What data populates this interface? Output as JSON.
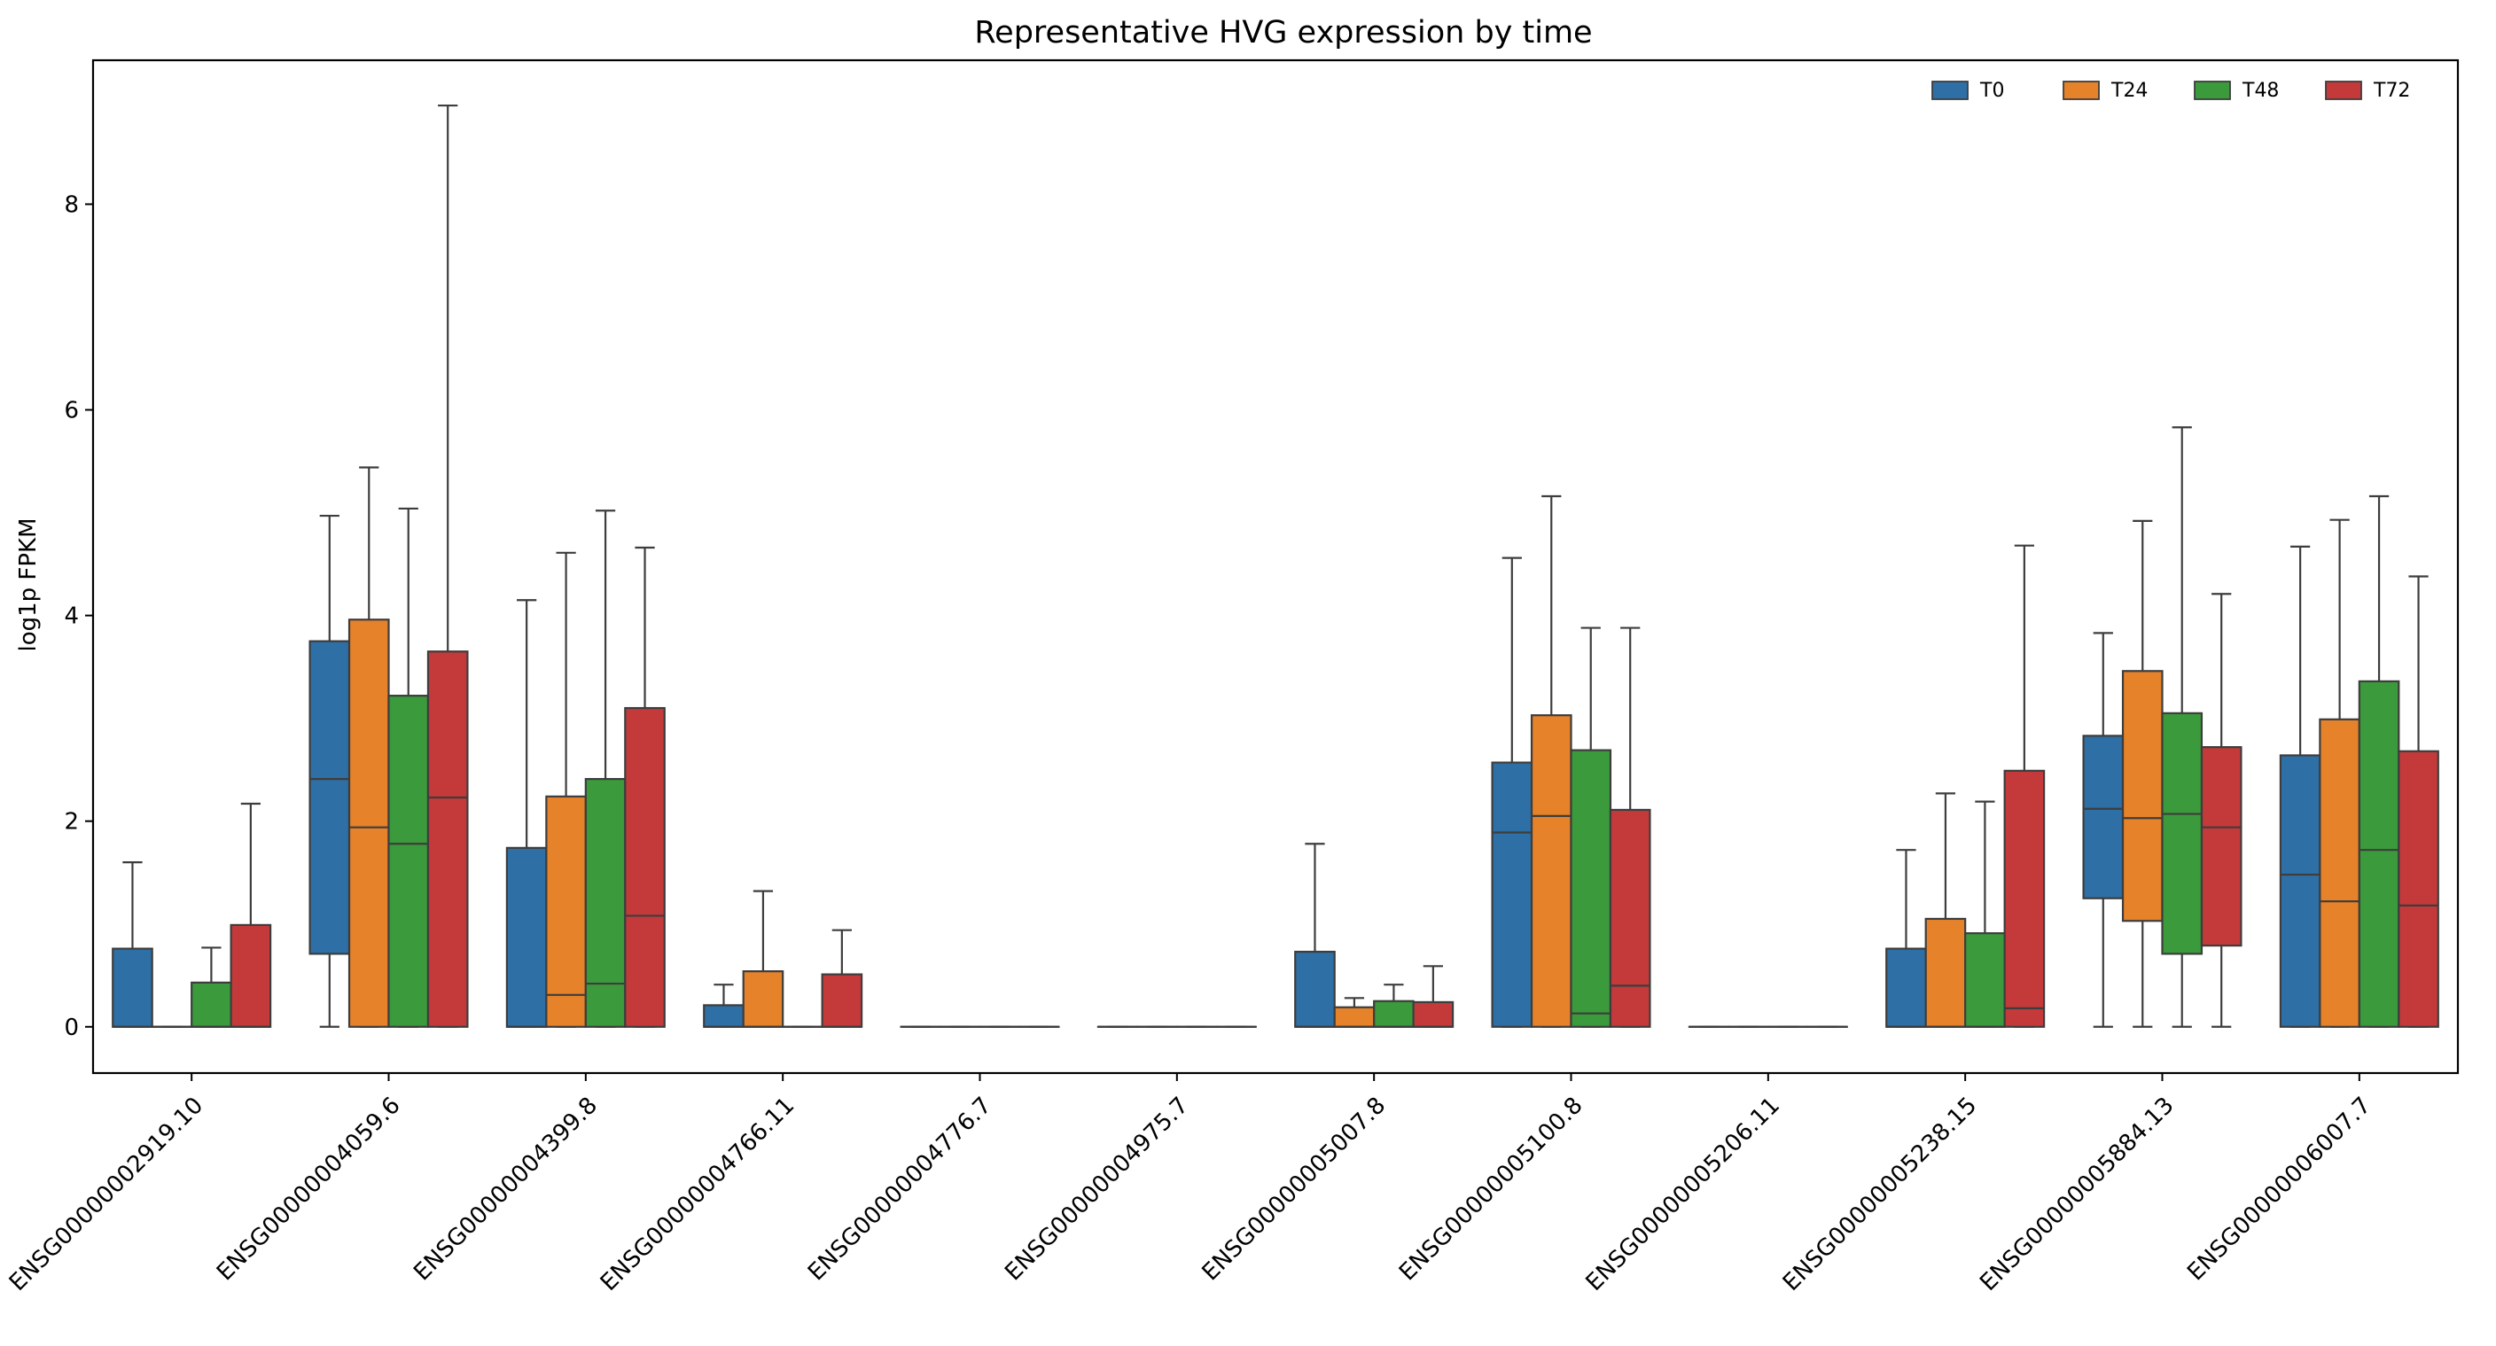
{
  "chart_data": {
    "type": "box",
    "title": "Representative HVG expression by time",
    "xlabel": "",
    "ylabel": "log1p FPKM",
    "ylim": [
      -0.45,
      9.4
    ],
    "yticks": [
      0,
      2,
      4,
      6,
      8
    ],
    "grid": false,
    "legend_position": "top-right",
    "categories": [
      "ENSG00000002919.10",
      "ENSG00000004059.6",
      "ENSG00000004399.8",
      "ENSG00000004766.11",
      "ENSG00000004776.7",
      "ENSG00000004975.7",
      "ENSG00000005007.8",
      "ENSG00000005100.8",
      "ENSG00000005206.11",
      "ENSG00000005238.15",
      "ENSG00000005884.13",
      "ENSG00000006007.7"
    ],
    "series": [
      {
        "name": "T0",
        "color": "#2e6fa6",
        "boxes": [
          {
            "whislo": 0,
            "q1": 0,
            "med": 0,
            "q3": 0.76,
            "whishi": 1.6
          },
          {
            "whislo": 0,
            "q1": 0.71,
            "med": 2.41,
            "q3": 3.75,
            "whishi": 4.97
          },
          {
            "whislo": 0,
            "q1": 0,
            "med": 0,
            "q3": 1.74,
            "whishi": 4.15
          },
          {
            "whislo": 0,
            "q1": 0,
            "med": 0,
            "q3": 0.21,
            "whishi": 0.41
          },
          {
            "whislo": 0,
            "q1": 0,
            "med": 0,
            "q3": 0,
            "whishi": 0
          },
          {
            "whislo": 0,
            "q1": 0,
            "med": 0,
            "q3": 0,
            "whishi": 0
          },
          {
            "whislo": 0,
            "q1": 0,
            "med": 0,
            "q3": 0.73,
            "whishi": 1.78
          },
          {
            "whislo": 0,
            "q1": 0,
            "med": 1.89,
            "q3": 2.57,
            "whishi": 4.56
          },
          {
            "whislo": 0,
            "q1": 0,
            "med": 0,
            "q3": 0,
            "whishi": 0
          },
          {
            "whislo": 0,
            "q1": 0,
            "med": 0,
            "q3": 0.76,
            "whishi": 1.72
          },
          {
            "whislo": 0,
            "q1": 1.25,
            "med": 2.12,
            "q3": 2.83,
            "whishi": 3.83
          },
          {
            "whislo": 0,
            "q1": 0,
            "med": 1.48,
            "q3": 2.64,
            "whishi": 4.67
          }
        ]
      },
      {
        "name": "T24",
        "color": "#e5822a",
        "boxes": [
          {
            "whislo": 0,
            "q1": 0,
            "med": 0,
            "q3": 0,
            "whishi": 0
          },
          {
            "whislo": 0,
            "q1": 0,
            "med": 1.94,
            "q3": 3.96,
            "whishi": 5.44
          },
          {
            "whislo": 0,
            "q1": 0,
            "med": 0.31,
            "q3": 2.24,
            "whishi": 4.61
          },
          {
            "whislo": 0,
            "q1": 0,
            "med": 0,
            "q3": 0.54,
            "whishi": 1.32
          },
          {
            "whislo": 0,
            "q1": 0,
            "med": 0,
            "q3": 0,
            "whishi": 0
          },
          {
            "whislo": 0,
            "q1": 0,
            "med": 0,
            "q3": 0,
            "whishi": 0
          },
          {
            "whislo": 0,
            "q1": 0,
            "med": 0,
            "q3": 0.19,
            "whishi": 0.28
          },
          {
            "whislo": 0,
            "q1": 0,
            "med": 2.05,
            "q3": 3.03,
            "whishi": 5.16
          },
          {
            "whislo": 0,
            "q1": 0,
            "med": 0,
            "q3": 0,
            "whishi": 0
          },
          {
            "whislo": 0,
            "q1": 0,
            "med": 0,
            "q3": 1.05,
            "whishi": 2.27
          },
          {
            "whislo": 0,
            "q1": 1.03,
            "med": 2.03,
            "q3": 3.46,
            "whishi": 4.92
          },
          {
            "whislo": 0,
            "q1": 0,
            "med": 1.22,
            "q3": 2.99,
            "whishi": 4.93
          }
        ]
      },
      {
        "name": "T48",
        "color": "#3b9a3b",
        "boxes": [
          {
            "whislo": 0,
            "q1": 0,
            "med": 0,
            "q3": 0.43,
            "whishi": 0.77
          },
          {
            "whislo": 0,
            "q1": 0,
            "med": 1.78,
            "q3": 3.22,
            "whishi": 5.04
          },
          {
            "whislo": 0,
            "q1": 0,
            "med": 0.42,
            "q3": 2.41,
            "whishi": 5.02
          },
          {
            "whislo": 0,
            "q1": 0,
            "med": 0,
            "q3": 0,
            "whishi": 0
          },
          {
            "whislo": 0,
            "q1": 0,
            "med": 0,
            "q3": 0,
            "whishi": 0
          },
          {
            "whislo": 0,
            "q1": 0,
            "med": 0,
            "q3": 0,
            "whishi": 0
          },
          {
            "whislo": 0,
            "q1": 0,
            "med": 0,
            "q3": 0.25,
            "whishi": 0.41
          },
          {
            "whislo": 0,
            "q1": 0,
            "med": 0.13,
            "q3": 2.69,
            "whishi": 3.88
          },
          {
            "whislo": 0,
            "q1": 0,
            "med": 0,
            "q3": 0,
            "whishi": 0
          },
          {
            "whislo": 0,
            "q1": 0,
            "med": 0,
            "q3": 0.91,
            "whishi": 2.19
          },
          {
            "whislo": 0,
            "q1": 0.71,
            "med": 2.07,
            "q3": 3.05,
            "whishi": 5.83
          },
          {
            "whislo": 0,
            "q1": 0,
            "med": 1.72,
            "q3": 3.36,
            "whishi": 5.16
          }
        ]
      },
      {
        "name": "T72",
        "color": "#c43a3b",
        "boxes": [
          {
            "whislo": 0,
            "q1": 0,
            "med": 0,
            "q3": 0.99,
            "whishi": 2.17
          },
          {
            "whislo": 0,
            "q1": 0,
            "med": 2.23,
            "q3": 3.65,
            "whishi": 8.96
          },
          {
            "whislo": 0,
            "q1": 0,
            "med": 1.08,
            "q3": 3.1,
            "whishi": 4.66
          },
          {
            "whislo": 0,
            "q1": 0,
            "med": 0,
            "q3": 0.51,
            "whishi": 0.94
          },
          {
            "whislo": 0,
            "q1": 0,
            "med": 0,
            "q3": 0,
            "whishi": 0
          },
          {
            "whislo": 0,
            "q1": 0,
            "med": 0,
            "q3": 0,
            "whishi": 0
          },
          {
            "whislo": 0,
            "q1": 0,
            "med": 0,
            "q3": 0.24,
            "whishi": 0.59
          },
          {
            "whislo": 0,
            "q1": 0,
            "med": 0.4,
            "q3": 2.11,
            "whishi": 3.88
          },
          {
            "whislo": 0,
            "q1": 0,
            "med": 0,
            "q3": 0,
            "whishi": 0
          },
          {
            "whislo": 0,
            "q1": 0,
            "med": 0.18,
            "q3": 2.49,
            "whishi": 4.68
          },
          {
            "whislo": 0,
            "q1": 0.79,
            "med": 1.94,
            "q3": 2.72,
            "whishi": 4.21
          },
          {
            "whislo": 0,
            "q1": 0,
            "med": 1.18,
            "q3": 2.68,
            "whishi": 4.38
          }
        ]
      }
    ]
  }
}
